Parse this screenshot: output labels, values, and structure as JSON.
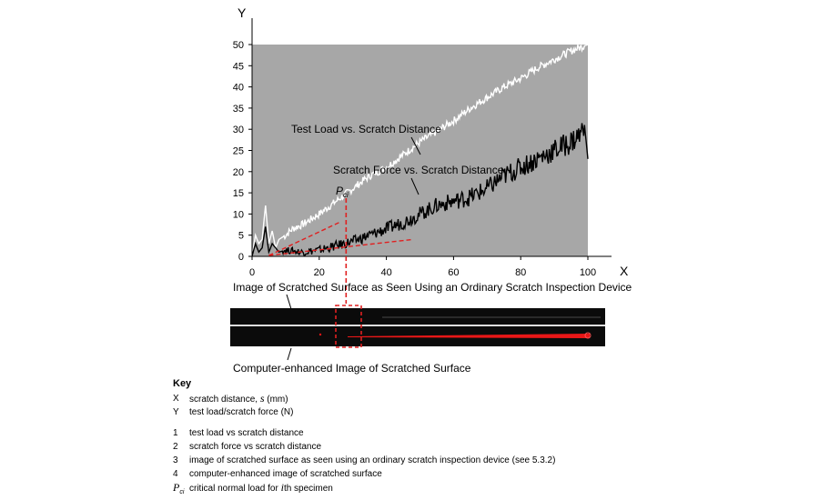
{
  "chart_data": {
    "type": "line",
    "x_axis_letter": "X",
    "y_axis_letter": "Y",
    "xlim": [
      0,
      100
    ],
    "ylim": [
      0,
      50
    ],
    "x_ticks": [
      0,
      20,
      40,
      60,
      80,
      100
    ],
    "y_ticks": [
      0,
      5,
      10,
      15,
      20,
      25,
      30,
      35,
      40,
      45,
      50
    ],
    "grid": false,
    "plot_background": "#a7a7a7",
    "series": [
      {
        "name": "Test Load vs. Scratch Distance",
        "color": "#ffffff",
        "x": [
          0,
          1,
          2,
          3,
          4,
          5,
          6,
          7,
          8,
          10,
          12,
          15,
          20,
          25,
          30,
          35,
          40,
          45,
          50,
          55,
          60,
          65,
          70,
          75,
          80,
          85,
          90,
          95,
          100
        ],
        "y": [
          0,
          5,
          3,
          4,
          12,
          3,
          6,
          2,
          4,
          5,
          6.5,
          7.5,
          10,
          13,
          16,
          19,
          21,
          24,
          27,
          29.5,
          32,
          35,
          37.5,
          40,
          42,
          44.5,
          46.5,
          48.5,
          50
        ]
      },
      {
        "name": "Scratch Force vs. Scratch Distance",
        "color": "#000000",
        "x": [
          0,
          1,
          2,
          3,
          4,
          5,
          6,
          8,
          10,
          15,
          20,
          25,
          30,
          35,
          40,
          45,
          50,
          55,
          60,
          65,
          70,
          75,
          80,
          85,
          90,
          95,
          98,
          99,
          100
        ],
        "y": [
          0,
          3,
          1,
          2,
          7,
          1,
          3,
          1,
          1.5,
          1,
          1.5,
          2.5,
          3.5,
          5,
          6.5,
          8,
          10,
          12,
          13,
          14,
          16,
          19,
          21,
          23,
          25,
          27,
          29,
          31,
          23
        ]
      }
    ],
    "annotations": {
      "test_load": "Test Load vs. Scratch Distance",
      "scratch_force": "Scratch Force vs. Scratch Distance",
      "pc_symbol": "P",
      "pc_subscript": "ci",
      "pc_x": 28,
      "zoom_range": [
        5,
        48
      ]
    },
    "image_caption_top": "Image of Scratched Surface as Seen Using an Ordinary Scratch Inspection Device",
    "image_caption_bottom": "Computer-enhanced Image of Scratched Surface"
  },
  "key": {
    "heading": "Key",
    "axes": [
      {
        "code": "X",
        "pre": "scratch distance, ",
        "sym": "s",
        "post": " (mm)"
      },
      {
        "code": "Y",
        "text": "test load/scratch force (N)"
      }
    ],
    "items": [
      {
        "code": "1",
        "text": "test load vs scratch distance"
      },
      {
        "code": "2",
        "text": "scratch force vs scratch distance"
      },
      {
        "code": "3",
        "text": "image of scratched surface as seen using an ordinary scratch inspection device (see 5.3.2)"
      },
      {
        "code": "4",
        "text": "computer-enhanced image of scratched surface"
      }
    ],
    "pc": {
      "sym": "P",
      "sub": "ci",
      "pre": "critical normal load for ",
      "mid": "i",
      "post": "th specimen"
    }
  }
}
